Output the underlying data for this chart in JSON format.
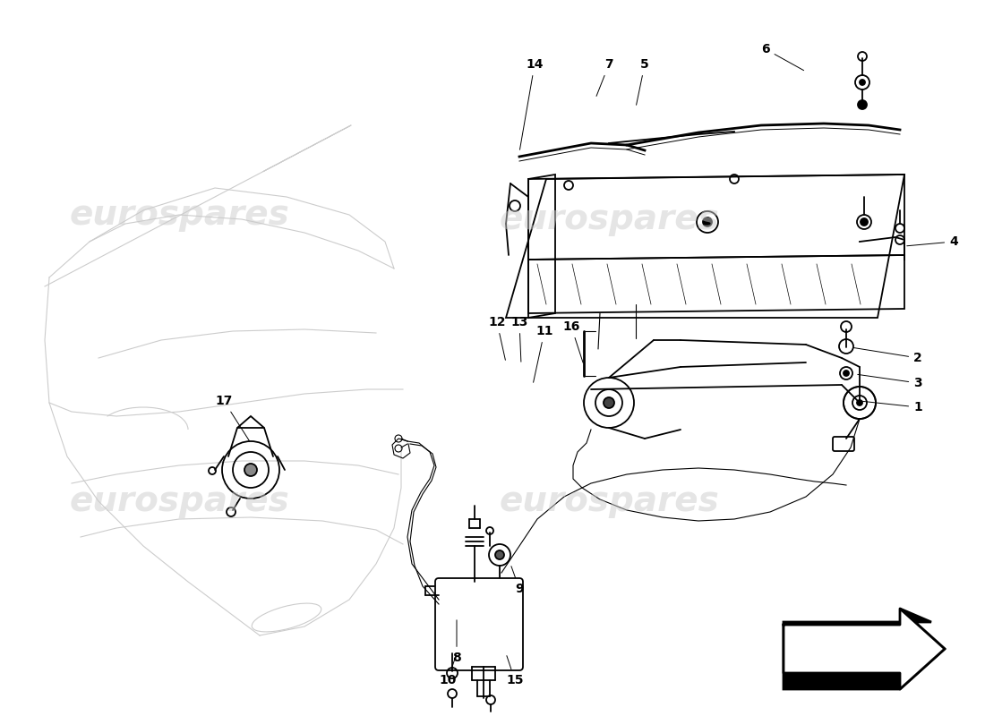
{
  "background_color": "#ffffff",
  "line_color": "#000000",
  "hood_color": "#cccccc",
  "wm_color": "#cccccc",
  "wm_text": "eurospares",
  "label_fontsize": 10,
  "label_fontweight": "bold",
  "labels": [
    [
      "1",
      1025,
      455,
      960,
      448
    ],
    [
      "2",
      1025,
      400,
      950,
      388
    ],
    [
      "3",
      1025,
      428,
      955,
      418
    ],
    [
      "4",
      1065,
      270,
      1010,
      275
    ],
    [
      "5",
      720,
      72,
      710,
      120
    ],
    [
      "6",
      855,
      55,
      900,
      80
    ],
    [
      "7",
      680,
      72,
      665,
      110
    ],
    [
      "8",
      510,
      735,
      510,
      690
    ],
    [
      "9",
      580,
      658,
      570,
      630
    ],
    [
      "10",
      500,
      760,
      510,
      730
    ],
    [
      "11",
      608,
      370,
      595,
      430
    ],
    [
      "12",
      555,
      360,
      565,
      405
    ],
    [
      "13",
      580,
      360,
      582,
      407
    ],
    [
      "14",
      597,
      72,
      580,
      170
    ],
    [
      "15",
      575,
      760,
      565,
      730
    ],
    [
      "16",
      638,
      365,
      652,
      408
    ],
    [
      "17",
      250,
      448,
      280,
      495
    ]
  ]
}
